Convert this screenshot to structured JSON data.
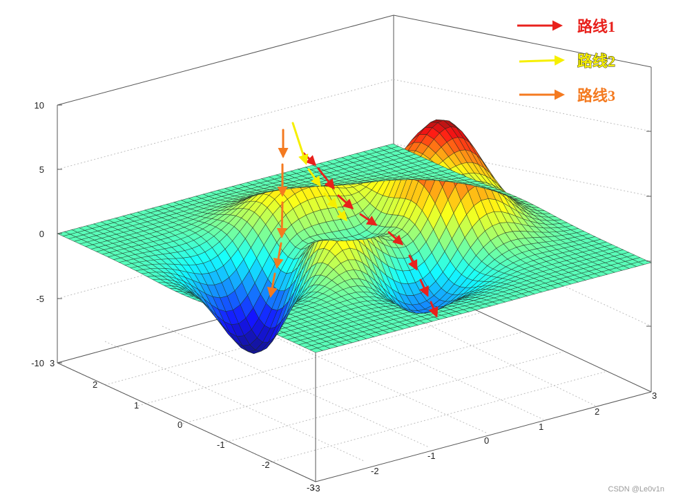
{
  "chart_data": {
    "type": "surface3d",
    "title": "",
    "function": "peaks",
    "x_range": [
      -3,
      3
    ],
    "y_range": [
      -3,
      3
    ],
    "zlim": [
      -10,
      10
    ],
    "z_ticks": [
      "10",
      "5",
      "0",
      "-5",
      "-10"
    ],
    "x_ticks": [
      "3",
      "2",
      "1",
      "0",
      "-1",
      "-2",
      "-3"
    ],
    "y_ticks": [
      "-3",
      "-2",
      "-1",
      "0",
      "1",
      "2",
      "3"
    ],
    "grid": true,
    "colormap": "jet",
    "surface_samples": {
      "max_peak": {
        "x": 0,
        "y": 1.6,
        "z": 8.1
      },
      "min_valley": {
        "x": 0.2,
        "y": -1.6,
        "z": -6.5
      },
      "secondary_peak": {
        "x": -0.5,
        "y": 0,
        "z": 3.8
      }
    },
    "legend": [
      {
        "label": "路线1",
        "color": "#e8211c"
      },
      {
        "label": "路线2",
        "color": "#f6ef00"
      },
      {
        "label": "路线3",
        "color": "#f47a20"
      }
    ]
  },
  "watermark": "CSDN @Le0v1n"
}
